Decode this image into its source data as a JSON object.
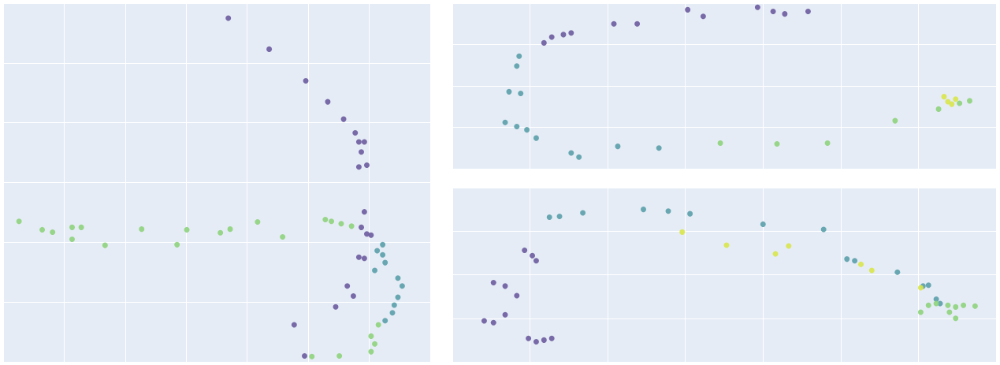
{
  "chart_data": [
    {
      "type": "scatter",
      "grid": true,
      "tick_labels": false,
      "marker": "circle",
      "xlim": [
        0,
        7
      ],
      "xticks": [
        0,
        1,
        2,
        3,
        4,
        5,
        6,
        7
      ],
      "ylim": [
        0,
        6
      ],
      "yticks": [
        0,
        1,
        2,
        3,
        4,
        5,
        6
      ],
      "x": [
        3.69,
        4.36,
        4.96,
        5.32,
        5.58,
        5.77,
        5.83,
        5.92,
        5.87,
        5.96,
        5.83,
        5.92,
        5.87,
        5.96,
        6.03,
        5.83,
        5.92,
        5.64,
        5.74,
        5.45,
        4.77,
        4.94,
        6.22,
        6.13,
        6.22,
        6.26,
        6.09,
        6.47,
        6.54,
        6.47,
        6.41,
        6.38,
        6.26,
        0.26,
        0.64,
        0.81,
        1.13,
        1.28,
        1.13,
        1.67,
        2.27,
        2.85,
        3.01,
        3.56,
        3.72,
        4.17,
        4.58,
        5.28,
        5.38,
        5.54,
        5.71,
        6.15,
        6.03,
        6.09,
        6.03,
        5.06,
        5.51
      ],
      "y": [
        5.75,
        5.23,
        4.7,
        4.35,
        4.06,
        3.83,
        3.68,
        3.68,
        3.51,
        3.29,
        3.26,
        2.51,
        2.25,
        2.14,
        2.12,
        1.75,
        1.73,
        1.27,
        1.1,
        0.92,
        0.62,
        0.1,
        1.96,
        1.86,
        1.79,
        1.66,
        1.53,
        1.4,
        1.27,
        1.08,
        0.95,
        0.82,
        0.69,
        2.35,
        2.21,
        2.17,
        2.25,
        2.25,
        2.05,
        1.95,
        2.22,
        1.96,
        2.21,
        2.16,
        2.22,
        2.34,
        2.09,
        2.38,
        2.35,
        2.31,
        2.27,
        0.62,
        0.43,
        0.3,
        0.17,
        0.09,
        0.1
      ],
      "colors": [
        "#6b5b9e",
        "#6b5b9e",
        "#6b5b9e",
        "#6b5b9e",
        "#6b5b9e",
        "#6b5b9e",
        "#6b5b9e",
        "#6b5b9e",
        "#6b5b9e",
        "#6b5b9e",
        "#6b5b9e",
        "#6b5b9e",
        "#6b5b9e",
        "#6b5b9e",
        "#6b5b9e",
        "#6b5b9e",
        "#6b5b9e",
        "#6b5b9e",
        "#6b5b9e",
        "#6b5b9e",
        "#6b5b9e",
        "#6b5b9e",
        "#5aa0aa",
        "#5aa0aa",
        "#5aa0aa",
        "#5aa0aa",
        "#5aa0aa",
        "#5aa0aa",
        "#5aa0aa",
        "#5aa0aa",
        "#5aa0aa",
        "#5aa0aa",
        "#5aa0aa",
        "#8ed37c",
        "#8ed37c",
        "#8ed37c",
        "#8ed37c",
        "#8ed37c",
        "#8ed37c",
        "#8ed37c",
        "#8ed37c",
        "#8ed37c",
        "#8ed37c",
        "#8ed37c",
        "#8ed37c",
        "#8ed37c",
        "#8ed37c",
        "#8ed37c",
        "#8ed37c",
        "#8ed37c",
        "#8ed37c",
        "#8ed37c",
        "#8ed37c",
        "#8ed37c",
        "#8ed37c",
        "#8ed37c",
        "#8ed37c"
      ]
    },
    {
      "type": "scatter",
      "grid": true,
      "tick_labels": false,
      "marker": "circle",
      "xlim": [
        0,
        7
      ],
      "xticks": [
        0,
        1,
        2,
        3,
        4,
        5,
        6,
        7
      ],
      "ylim": [
        0,
        2
      ],
      "yticks": [
        0,
        0.5,
        1,
        1.5,
        2
      ],
      "x": [
        1.43,
        1.53,
        1.28,
        1.18,
        2.08,
        2.38,
        3.03,
        3.23,
        3.93,
        4.13,
        4.28,
        4.58,
        0.86,
        0.83,
        0.73,
        0.88,
        0.68,
        0.83,
        0.96,
        1.08,
        1.53,
        1.63,
        2.13,
        2.66,
        3.45,
        4.18,
        4.83,
        5.7,
        6.26,
        6.66,
        6.53,
        6.33,
        6.38,
        6.43,
        6.48
      ],
      "y": [
        1.62,
        1.64,
        1.59,
        1.52,
        1.75,
        1.75,
        1.92,
        1.84,
        1.95,
        1.9,
        1.87,
        1.9,
        1.36,
        1.24,
        0.93,
        0.91,
        0.56,
        0.51,
        0.47,
        0.37,
        0.19,
        0.14,
        0.27,
        0.25,
        0.31,
        0.3,
        0.31,
        0.58,
        0.72,
        0.82,
        0.79,
        0.87,
        0.81,
        0.78,
        0.84
      ],
      "colors": [
        "#6b5b9e",
        "#6b5b9e",
        "#6b5b9e",
        "#6b5b9e",
        "#6b5b9e",
        "#6b5b9e",
        "#6b5b9e",
        "#6b5b9e",
        "#6b5b9e",
        "#6b5b9e",
        "#6b5b9e",
        "#6b5b9e",
        "#5aa0aa",
        "#5aa0aa",
        "#5aa0aa",
        "#5aa0aa",
        "#5aa0aa",
        "#5aa0aa",
        "#5aa0aa",
        "#5aa0aa",
        "#5aa0aa",
        "#5aa0aa",
        "#5aa0aa",
        "#5aa0aa",
        "#8ed37c",
        "#8ed37c",
        "#8ed37c",
        "#8ed37c",
        "#8ed37c",
        "#8ed37c",
        "#8ed37c",
        "#d8e64a",
        "#d8e64a",
        "#d8e64a",
        "#d8e64a"
      ]
    },
    {
      "type": "scatter",
      "grid": true,
      "tick_labels": false,
      "marker": "circle",
      "xlim": [
        0,
        7
      ],
      "xticks": [
        0,
        1,
        2,
        3,
        4,
        5,
        6,
        7
      ],
      "ylim": [
        0,
        2
      ],
      "yticks": [
        0,
        0.5,
        1,
        1.5,
        2
      ],
      "x": [
        0.41,
        0.53,
        0.68,
        0.53,
        0.68,
        0.83,
        0.98,
        1.08,
        1.18,
        1.28,
        0.93,
        1.03,
        1.08,
        1.25,
        1.38,
        1.68,
        2.46,
        2.78,
        3.06,
        4.0,
        4.78,
        5.08,
        5.18,
        5.73,
        6.13,
        6.23,
        6.28,
        6.06,
        2.96,
        3.53,
        4.16,
        4.33,
        5.26,
        5.4,
        6.03,
        6.13,
        6.23,
        6.38,
        6.48,
        6.58,
        6.73,
        6.48,
        6.03,
        6.4
      ],
      "y": [
        0.47,
        0.45,
        0.54,
        0.91,
        0.87,
        0.76,
        0.27,
        0.23,
        0.25,
        0.27,
        1.28,
        1.22,
        1.16,
        1.66,
        1.67,
        1.71,
        1.75,
        1.73,
        1.7,
        1.58,
        1.52,
        1.18,
        1.16,
        1.03,
        0.88,
        0.72,
        0.67,
        0.87,
        1.49,
        1.34,
        1.24,
        1.33,
        1.12,
        1.05,
        0.85,
        0.65,
        0.67,
        0.65,
        0.63,
        0.65,
        0.64,
        0.5,
        0.57,
        0.57
      ],
      "colors": [
        "#6b5b9e",
        "#6b5b9e",
        "#6b5b9e",
        "#6b5b9e",
        "#6b5b9e",
        "#6b5b9e",
        "#6b5b9e",
        "#6b5b9e",
        "#6b5b9e",
        "#6b5b9e",
        "#6b5b9e",
        "#6b5b9e",
        "#6b5b9e",
        "#5aa0aa",
        "#5aa0aa",
        "#5aa0aa",
        "#5aa0aa",
        "#5aa0aa",
        "#5aa0aa",
        "#5aa0aa",
        "#5aa0aa",
        "#5aa0aa",
        "#5aa0aa",
        "#5aa0aa",
        "#5aa0aa",
        "#5aa0aa",
        "#5aa0aa",
        "#5aa0aa",
        "#d8e64a",
        "#d8e64a",
        "#d8e64a",
        "#d8e64a",
        "#d8e64a",
        "#d8e64a",
        "#d8e64a",
        "#8ed37c",
        "#8ed37c",
        "#8ed37c",
        "#8ed37c",
        "#8ed37c",
        "#8ed37c",
        "#8ed37c",
        "#8ed37c",
        "#8ed37c"
      ]
    }
  ]
}
